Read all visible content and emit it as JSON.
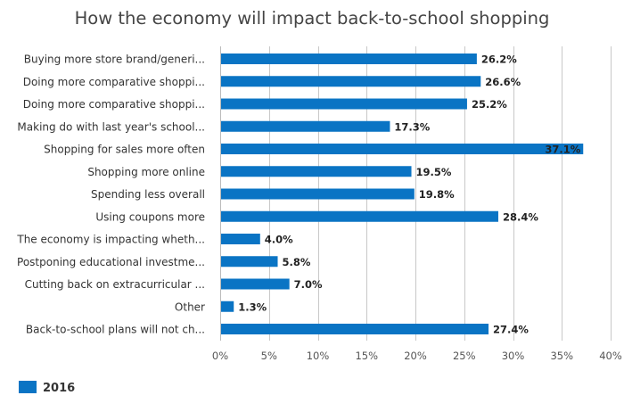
{
  "chart_data": {
    "type": "bar",
    "orientation": "horizontal",
    "title": "How the economy will impact back-to-school shopping",
    "xlabel": "",
    "ylabel": "",
    "categories": [
      "Buying more store brand/generi...",
      "Doing more comparative shoppi...",
      "Doing more comparative shoppi...",
      "Making do with last year's school...",
      "Shopping for sales more often",
      "Shopping more online",
      "Spending less overall",
      "Using coupons more",
      "The economy is impacting wheth...",
      "Postponing educational investme...",
      "Cutting back on extracurricular ...",
      "Other",
      "Back-to-school plans will not ch..."
    ],
    "series": [
      {
        "name": "2016",
        "color": "#0a74c4",
        "values": [
          26.2,
          26.6,
          25.2,
          17.3,
          37.1,
          19.5,
          19.8,
          28.4,
          4.0,
          5.8,
          7.0,
          1.3,
          27.4
        ],
        "value_labels": [
          "26.2%",
          "26.6%",
          "25.2%",
          "17.3%",
          "37.1%",
          "19.5%",
          "19.8%",
          "28.4%",
          "4.0%",
          "5.8%",
          "7.0%",
          "1.3%",
          "27.4%"
        ]
      }
    ],
    "xlim": [
      0,
      40
    ],
    "ticks": [
      {
        "value": 0,
        "label": "0%"
      },
      {
        "value": 5,
        "label": "5%"
      },
      {
        "value": 10,
        "label": "10%"
      },
      {
        "value": 15,
        "label": "15%"
      },
      {
        "value": 20,
        "label": "20%"
      },
      {
        "value": 25,
        "label": "25%"
      },
      {
        "value": 30,
        "label": "30%"
      },
      {
        "value": 35,
        "label": "35%"
      },
      {
        "value": 40,
        "label": "40%"
      }
    ],
    "grid": true,
    "legend_position": "bottom-left",
    "colors": {
      "bar": "#0a74c4",
      "grid": "#c8c8c8",
      "title": "#444444",
      "label": "#333333",
      "tick": "#555555"
    }
  }
}
